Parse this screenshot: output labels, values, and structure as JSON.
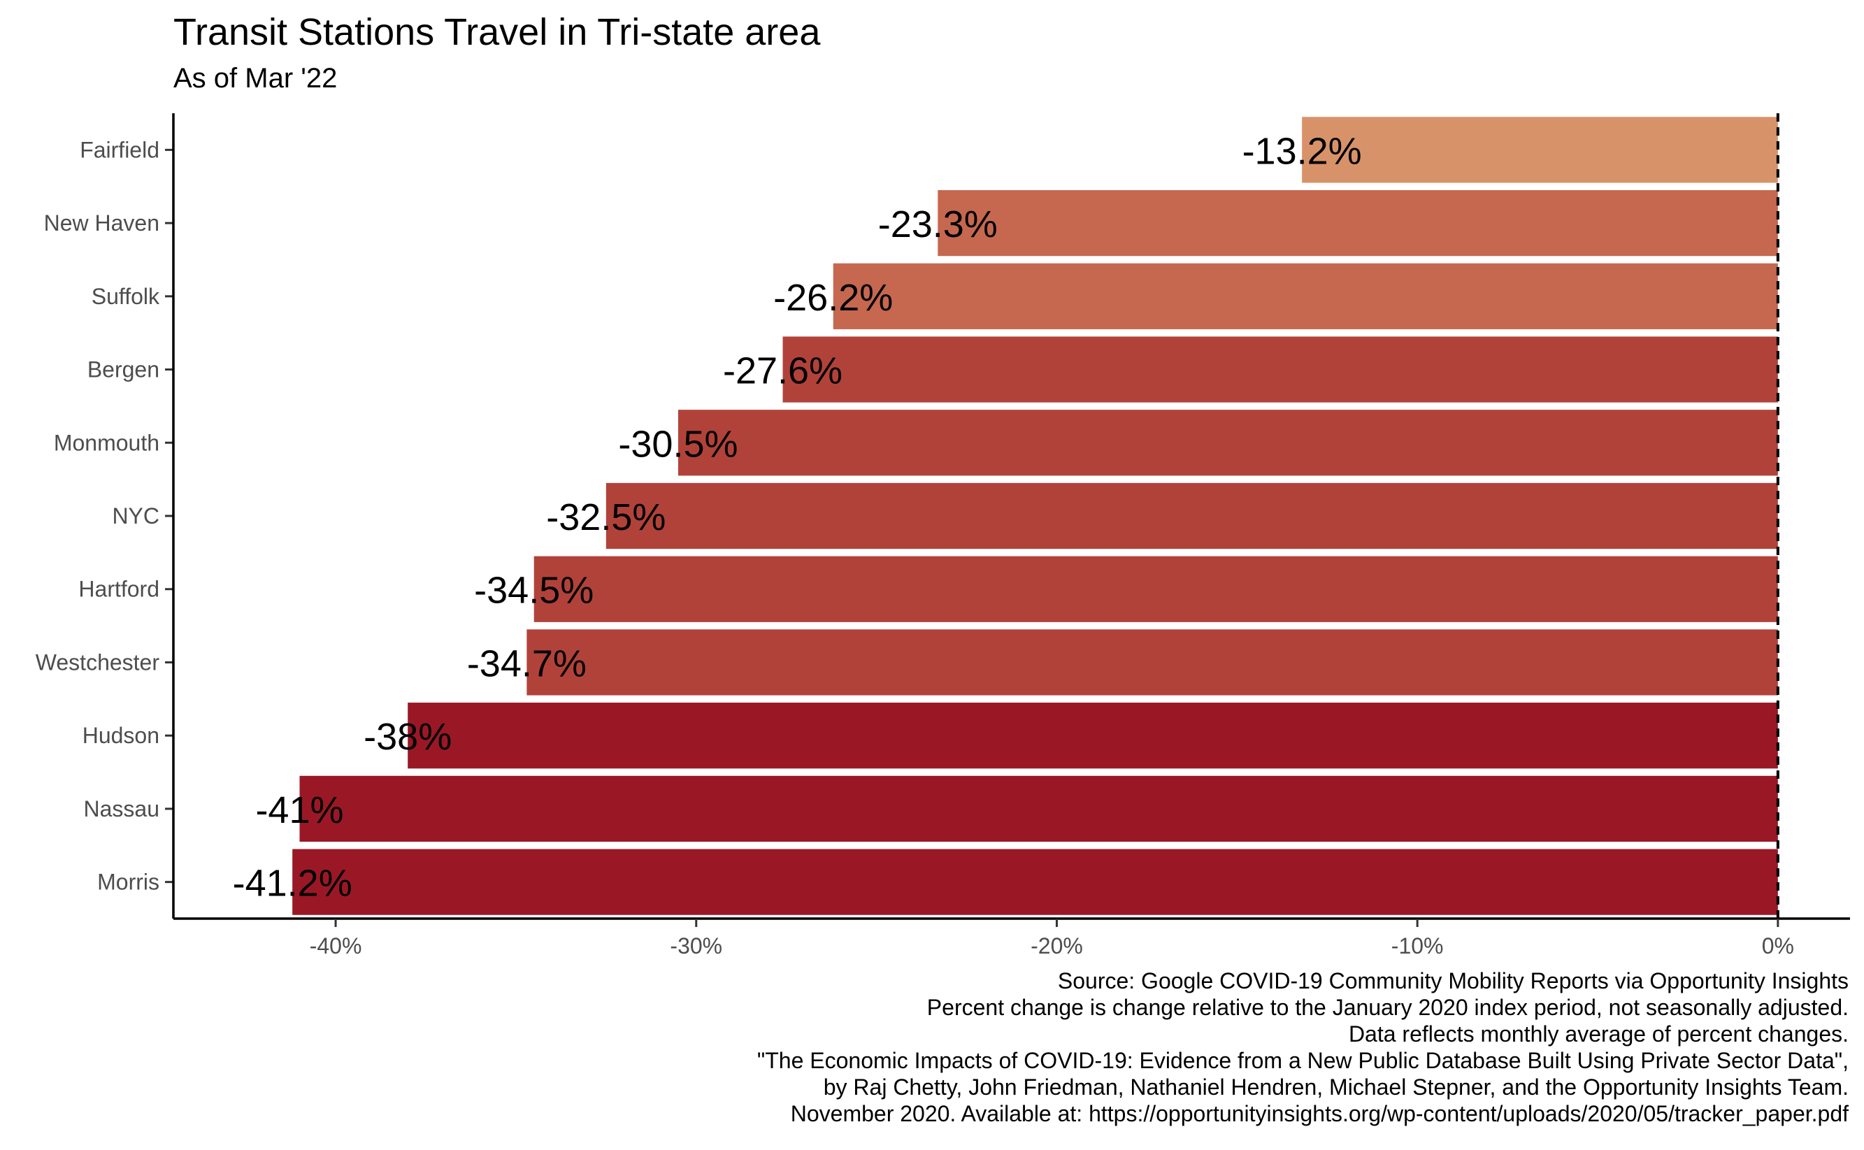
{
  "chart_data": {
    "type": "bar",
    "orientation": "horizontal",
    "title": "Transit Stations Travel in Tri-state area",
    "subtitle": "As of Mar '22",
    "categories": [
      "Fairfield",
      "New Haven",
      "Suffolk",
      "Bergen",
      "Monmouth",
      "NYC",
      "Hartford",
      "Westchester",
      "Hudson",
      "Nassau",
      "Morris"
    ],
    "values": [
      -13.2,
      -23.3,
      -26.2,
      -27.6,
      -30.5,
      -32.5,
      -34.5,
      -34.7,
      -38,
      -41,
      -41.2
    ],
    "value_labels": [
      "-13.2%",
      "-23.3%",
      "-26.2%",
      "-27.6%",
      "-30.5%",
      "-32.5%",
      "-34.5%",
      "-34.7%",
      "-38%",
      "-41%",
      "-41.2%"
    ],
    "bar_colors": [
      "#d8926a",
      "#c5684f",
      "#c5684f",
      "#b1423a",
      "#b1423a",
      "#b1423a",
      "#b1423a",
      "#b1423a",
      "#9a1826",
      "#9a1826",
      "#9a1826"
    ],
    "x_ticks": [
      -40,
      -30,
      -20,
      -10,
      0
    ],
    "x_tick_labels": [
      "-40%",
      "-30%",
      "-20%",
      "-10%",
      "0%"
    ],
    "xlim": [
      -44.5,
      2
    ],
    "xlabel": "",
    "ylabel": "",
    "reference_line": 0,
    "grid": false,
    "legend": "none"
  },
  "caption": [
    "Source: Google COVID-19 Community Mobility Reports via Opportunity Insights",
    "Percent change is change relative to the January 2020 index period, not seasonally adjusted.",
    "Data reflects monthly average of percent changes.",
    "\"The Economic Impacts of COVID-19: Evidence from a New Public Database Built Using Private Sector Data\",",
    "by Raj Chetty, John Friedman, Nathaniel Hendren, Michael Stepner, and the Opportunity Insights Team.",
    "November 2020. Available at: https://opportunityinsights.org/wp-content/uploads/2020/05/tracker_paper.pdf"
  ]
}
